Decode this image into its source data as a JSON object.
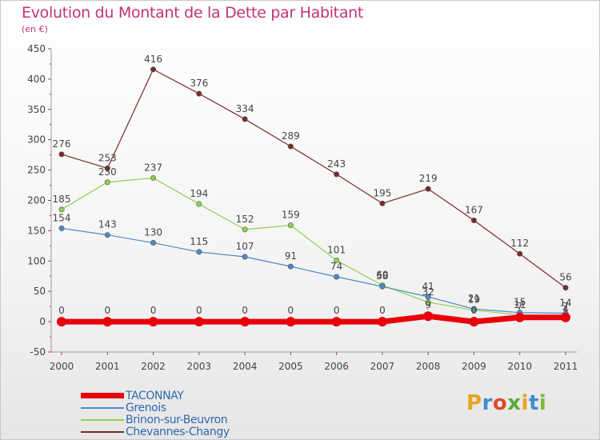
{
  "header": {
    "title": "Evolution du Montant de la Dette par Habitant",
    "unit": "(en €)"
  },
  "logo": {
    "text": "Proxiti",
    "colors": [
      "#e8a320",
      "#3b8fd0",
      "#d94c2a",
      "#5aaa3a",
      "#e8a320",
      "#3b8fd0",
      "#7ab839"
    ]
  },
  "chart_data": {
    "type": "line",
    "title": "Evolution du Montant de la Dette par Habitant",
    "ylabel": "(en €)",
    "xlabel": "",
    "x": [
      "2000",
      "2001",
      "2002",
      "2003",
      "2004",
      "2005",
      "2006",
      "2007",
      "2008",
      "2009",
      "2010",
      "2011"
    ],
    "ylim": [
      -50,
      450
    ],
    "yticks": [
      -50,
      0,
      50,
      100,
      150,
      200,
      250,
      300,
      350,
      400,
      450
    ],
    "grid": false,
    "legend_position": "bottom-left",
    "series": [
      {
        "name": "TACONNAY",
        "color": "#e8000b",
        "values": [
          0,
          0,
          0,
          0,
          0,
          0,
          0,
          0,
          9,
          0,
          7,
          7
        ],
        "labels": [
          "0",
          "0",
          "0",
          "0",
          "0",
          "0",
          "0",
          "0",
          "9",
          "0",
          "7",
          "7"
        ]
      },
      {
        "name": "Grenois",
        "color": "#4a8bc9",
        "values": [
          154,
          143,
          130,
          115,
          107,
          91,
          74,
          58,
          41,
          21,
          15,
          14
        ],
        "labels": [
          "154",
          "143",
          "130",
          "115",
          "107",
          "91",
          "74",
          "58",
          "41",
          "21",
          "15",
          "14"
        ]
      },
      {
        "name": "Brinon-sur-Beuvron",
        "color": "#8fd14f",
        "values": [
          185,
          230,
          237,
          194,
          152,
          159,
          101,
          60,
          32,
          19,
          11,
          4
        ],
        "labels": [
          "185",
          "230",
          "237",
          "194",
          "152",
          "159",
          "101",
          "60",
          "32",
          "19",
          "11",
          "4"
        ]
      },
      {
        "name": "Chevannes-Changy",
        "color": "#7a2a2a",
        "values": [
          276,
          253,
          416,
          376,
          334,
          289,
          243,
          195,
          219,
          167,
          112,
          56
        ],
        "labels": [
          "276",
          "253",
          "416",
          "376",
          "334",
          "289",
          "243",
          "195",
          "219",
          "167",
          "112",
          "56"
        ]
      }
    ]
  }
}
